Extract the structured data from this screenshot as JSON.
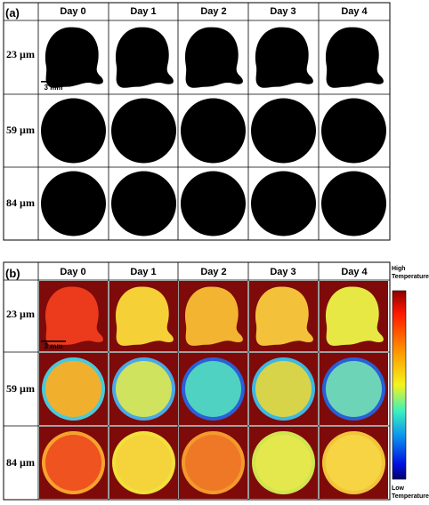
{
  "panel_a": {
    "label": "(a)",
    "columns": [
      "Day 0",
      "Day 1",
      "Day 2",
      "Day 3",
      "Day 4"
    ],
    "rows": [
      "23 µm",
      "59 µm",
      "84 µm"
    ],
    "scale_bar": "3 mm"
  },
  "panel_b": {
    "label": "(b)",
    "columns": [
      "Day 0",
      "Day 1",
      "Day 2",
      "Day 3",
      "Day 4"
    ],
    "rows": [
      "23 µm",
      "59 µm",
      "84 µm"
    ],
    "scale_bar": "3 mm",
    "colorbar": {
      "high_line1": "High",
      "high_line2": "Temperature",
      "low_line1": "Low",
      "low_line2": "Temperature"
    },
    "cell_colors": [
      [
        "#ec3b1c",
        "#f6d037",
        "#f3b431",
        "#f4c23a",
        "#e7e843"
      ],
      [
        "#f0b02e",
        "#cfe35e",
        "#4fd2c2",
        "#d8d44a",
        "#6ed4b8"
      ],
      [
        "#ee5320",
        "#f5d43b",
        "#ef7827",
        "#e4e84c",
        "#f7d443"
      ]
    ],
    "ring_colors": [
      [
        null,
        null,
        null,
        null,
        null
      ],
      [
        "#4cc9d8",
        "#4aa8e6",
        "#2a60d8",
        "#3eb8e2",
        "#2860d8"
      ],
      [
        "#f6a32c",
        "#f0e13c",
        "#f29a2c",
        "#d0e54e",
        "#f1c53a"
      ]
    ]
  }
}
